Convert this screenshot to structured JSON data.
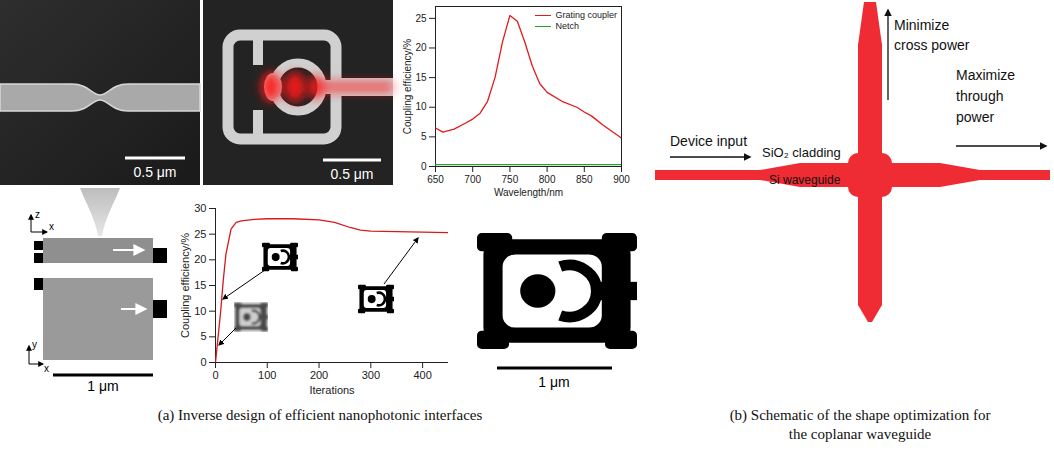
{
  "chart_data": [
    {
      "type": "line",
      "x_label": "Wavelength/nm",
      "y_label": "Coupling efficiency/%",
      "x": [
        650,
        660,
        675,
        690,
        700,
        710,
        720,
        730,
        740,
        750,
        760,
        770,
        780,
        790,
        800,
        820,
        840,
        850,
        860,
        875,
        900
      ],
      "series": [
        {
          "name": "Grating coupler",
          "color": "#e41a1c",
          "values": [
            6.5,
            5.8,
            6.3,
            7.3,
            8,
            9,
            11,
            15,
            21,
            25.5,
            24.5,
            21,
            17,
            14,
            12.5,
            11,
            10,
            9.2,
            8.5,
            7,
            4.8
          ]
        },
        {
          "name": "Netch",
          "color": "#2ca02c",
          "values": [
            0.3,
            0.3,
            0.3,
            0.3,
            0.3,
            0.3,
            0.3,
            0.3,
            0.3,
            0.3,
            0.3,
            0.3,
            0.3,
            0.3,
            0.3,
            0.3,
            0.3,
            0.3,
            0.3,
            0.3,
            0.3
          ]
        }
      ],
      "xlim": [
        650,
        900
      ],
      "xticks": [
        650,
        700,
        750,
        800,
        850,
        900
      ],
      "ylim": [
        0,
        27
      ],
      "yticks": [
        0,
        5,
        10,
        15,
        20,
        25
      ],
      "legend": "top-right"
    },
    {
      "type": "line",
      "x_label": "Iterations",
      "y_label": "Coupling efficiency/%",
      "x": [
        0,
        3,
        6,
        10,
        15,
        20,
        30,
        40,
        50,
        75,
        100,
        150,
        200,
        230,
        260,
        280,
        300,
        350,
        400,
        450
      ],
      "values": [
        0,
        3,
        6,
        10,
        16,
        21,
        26,
        27.3,
        27.6,
        27.9,
        28,
        28,
        27.8,
        27.3,
        26.3,
        25.8,
        25.6,
        25.5,
        25.4,
        25.3
      ],
      "color": "#d7191c",
      "xlim": [
        0,
        450
      ],
      "xticks": [
        0,
        100,
        200,
        300,
        400
      ],
      "ylim": [
        0,
        30
      ],
      "yticks": [
        0,
        5,
        10,
        15,
        20,
        25,
        30
      ]
    }
  ],
  "panel_a": {
    "caption": "(a) Inverse design of efficient nanophotonic interfaces",
    "sem_scale_bars": [
      "0.5 μm",
      "0.5 μm"
    ],
    "schematic": {
      "axes": [
        {
          "vertical": "z",
          "horizontal": "x"
        },
        {
          "vertical": "y",
          "horizontal": "x"
        }
      ],
      "scale_bar": "1 μm"
    },
    "final_design_scale_bar": "1 μm"
  },
  "panel_b": {
    "caption": "(b) Schematic of the shape optimization for the coplanar waveguide",
    "labels": {
      "input": "Device input",
      "cladding": "SiO₂ cladding",
      "core": "Si waveguide",
      "cross": "Minimize cross power",
      "through": "Maximize through power"
    }
  }
}
